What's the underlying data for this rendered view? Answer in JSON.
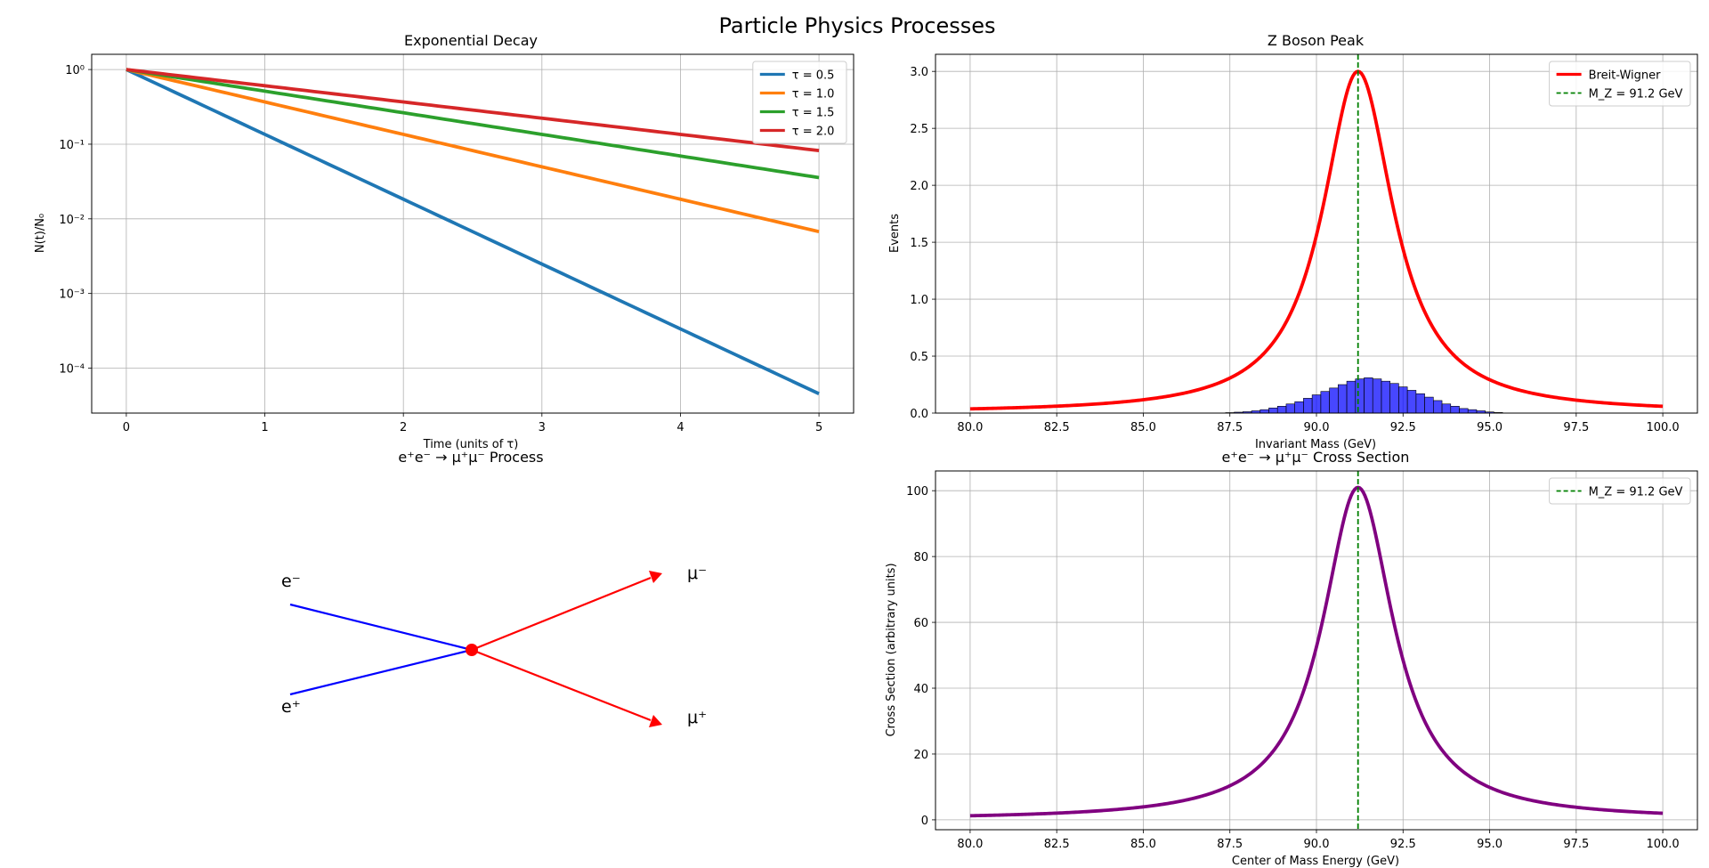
{
  "figure": {
    "title": "Particle Physics Processes"
  },
  "chart_data": [
    {
      "id": "decay",
      "type": "line",
      "title": "Exponential Decay",
      "xlabel": "Time (units of τ)",
      "ylabel": "N(t)/N₀",
      "yscale": "log",
      "xlim": [
        -0.25,
        5.25
      ],
      "ylim": [
        2.5e-05,
        1.6
      ],
      "xticks": [
        0,
        1,
        2,
        3,
        4,
        5
      ],
      "yticks": [
        {
          "value": 1,
          "label": "10⁰"
        },
        {
          "value": 0.1,
          "label": "10⁻¹"
        },
        {
          "value": 0.01,
          "label": "10⁻²"
        },
        {
          "value": 0.001,
          "label": "10⁻³"
        },
        {
          "value": 0.0001,
          "label": "10⁻⁴"
        }
      ],
      "grid": true,
      "legend": "top-right",
      "series": [
        {
          "name": "τ = 0.5",
          "tau": 0.5,
          "color": "#1f77b4"
        },
        {
          "name": "τ = 1.0",
          "tau": 1.0,
          "color": "#ff7f0e"
        },
        {
          "name": "τ = 1.5",
          "tau": 1.5,
          "color": "#2ca02c"
        },
        {
          "name": "τ = 2.0",
          "tau": 2.0,
          "color": "#d62728"
        }
      ]
    },
    {
      "id": "zpeak",
      "type": "line",
      "title": "Z Boson Peak",
      "xlabel": "Invariant Mass (GeV)",
      "ylabel": "Events",
      "xlim": [
        79,
        101
      ],
      "ylim": [
        0,
        3.15
      ],
      "xticks": [
        80.0,
        82.5,
        85.0,
        87.5,
        90.0,
        92.5,
        95.0,
        97.5,
        100.0
      ],
      "yticks": [
        0.0,
        0.5,
        1.0,
        1.5,
        2.0,
        2.5,
        3.0
      ],
      "grid": true,
      "legend": "top-right",
      "breit_wigner": {
        "name": "Breit-Wigner",
        "mass": 91.2,
        "width": 2.5,
        "peak": 3.0,
        "x_range": [
          80,
          100
        ],
        "color": "#ff0000"
      },
      "reference_line": {
        "name": "M_Z = 91.2 GeV",
        "x": 91.2,
        "color": "#008000"
      },
      "histogram": {
        "color": "#0000ff",
        "bin_width": 0.25,
        "bins": [
          {
            "x": 87.5,
            "y": 0.004
          },
          {
            "x": 87.75,
            "y": 0.008
          },
          {
            "x": 88.0,
            "y": 0.012
          },
          {
            "x": 88.25,
            "y": 0.02
          },
          {
            "x": 88.5,
            "y": 0.03
          },
          {
            "x": 88.75,
            "y": 0.045
          },
          {
            "x": 89.0,
            "y": 0.06
          },
          {
            "x": 89.25,
            "y": 0.08
          },
          {
            "x": 89.5,
            "y": 0.1
          },
          {
            "x": 89.75,
            "y": 0.13
          },
          {
            "x": 90.0,
            "y": 0.16
          },
          {
            "x": 90.25,
            "y": 0.19
          },
          {
            "x": 90.5,
            "y": 0.22
          },
          {
            "x": 90.75,
            "y": 0.25
          },
          {
            "x": 91.0,
            "y": 0.28
          },
          {
            "x": 91.25,
            "y": 0.3
          },
          {
            "x": 91.5,
            "y": 0.31
          },
          {
            "x": 91.75,
            "y": 0.3
          },
          {
            "x": 92.0,
            "y": 0.28
          },
          {
            "x": 92.25,
            "y": 0.26
          },
          {
            "x": 92.5,
            "y": 0.23
          },
          {
            "x": 92.75,
            "y": 0.2
          },
          {
            "x": 93.0,
            "y": 0.17
          },
          {
            "x": 93.25,
            "y": 0.14
          },
          {
            "x": 93.5,
            "y": 0.11
          },
          {
            "x": 93.75,
            "y": 0.08
          },
          {
            "x": 94.0,
            "y": 0.06
          },
          {
            "x": 94.25,
            "y": 0.04
          },
          {
            "x": 94.5,
            "y": 0.03
          },
          {
            "x": 94.75,
            "y": 0.02
          },
          {
            "x": 95.0,
            "y": 0.01
          },
          {
            "x": 95.25,
            "y": 0.005
          }
        ]
      }
    },
    {
      "id": "feynman",
      "type": "diagram",
      "title": "e⁺e⁻ → μ⁺μ⁻ Process",
      "vertex": {
        "color": "#ff0000"
      },
      "incoming": [
        {
          "label": "e⁻",
          "color": "#0000ff"
        },
        {
          "label": "e⁺",
          "color": "#0000ff"
        }
      ],
      "outgoing": [
        {
          "label": "μ⁻",
          "color": "#ff0000"
        },
        {
          "label": "μ⁺",
          "color": "#ff0000"
        }
      ]
    },
    {
      "id": "xsec",
      "type": "line",
      "title": "e⁺e⁻ → μ⁺μ⁻ Cross Section",
      "xlabel": "Center of Mass Energy (GeV)",
      "ylabel": "Cross Section (arbitrary units)",
      "xlim": [
        79,
        101
      ],
      "ylim": [
        -3,
        106
      ],
      "xticks": [
        80.0,
        82.5,
        85.0,
        87.5,
        90.0,
        92.5,
        95.0,
        97.5,
        100.0
      ],
      "yticks": [
        0,
        20,
        40,
        60,
        80,
        100
      ],
      "grid": true,
      "legend": "top-right",
      "curve": {
        "mass": 91.2,
        "width": 2.5,
        "peak": 101,
        "x_range": [
          80,
          100
        ],
        "color": "#800080"
      },
      "reference_line": {
        "name": "M_Z = 91.2 GeV",
        "x": 91.2,
        "color": "#008000"
      }
    }
  ]
}
